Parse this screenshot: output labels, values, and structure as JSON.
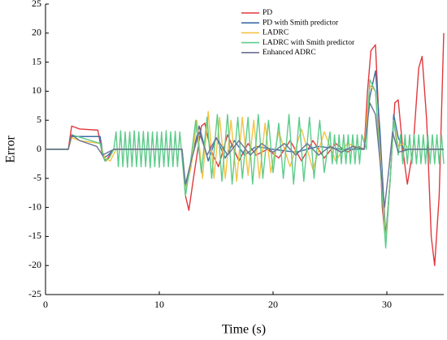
{
  "chart_data": {
    "type": "line",
    "x_label": "Time (s)",
    "y_label": "Error",
    "xlim": [
      0,
      35
    ],
    "xticks": [
      0,
      10,
      20,
      30
    ],
    "ylim": [
      -25,
      25
    ],
    "yticks": [
      -25,
      -20,
      -15,
      -10,
      -5,
      0,
      5,
      10,
      15,
      20,
      25
    ],
    "grid": false,
    "legend": "upper right",
    "series": [
      {
        "name": "PD",
        "color": "#e0393e",
        "x": [
          0,
          2,
          2.3,
          3,
          4.6,
          5,
          5.3,
          6,
          12,
          12.3,
          12.6,
          13,
          13.7,
          14,
          14.5,
          15.2,
          16,
          17,
          17.8,
          18.5,
          19.5,
          20.5,
          21.5,
          22.5,
          23.5,
          24.5,
          25.5,
          26.5,
          27.5,
          28,
          28.3,
          28.6,
          29,
          29.3,
          29.6,
          29.9,
          30.3,
          30.7,
          31,
          31.4,
          31.8,
          32.3,
          32.8,
          33.1,
          33.5,
          33.9,
          34.2,
          34.6,
          35
        ],
        "values": [
          0,
          0,
          4,
          3.5,
          3.3,
          -1,
          -2,
          0,
          0,
          -8,
          -10.5,
          -5,
          4,
          4.5,
          0,
          -3,
          2.5,
          -2,
          1,
          -1,
          0,
          -1.5,
          1.5,
          -2,
          1.5,
          -1.5,
          1,
          -0.5,
          0.5,
          0,
          10,
          17,
          18,
          5,
          -10,
          -16,
          -5,
          8,
          8.5,
          0,
          -6,
          0,
          14,
          16,
          5,
          -15,
          -20,
          -8,
          20
        ]
      },
      {
        "name": "PD with Smith predictor",
        "color": "#3d6ea6",
        "x": [
          0,
          2,
          2.3,
          4.8,
          5.1,
          5.5,
          6,
          12,
          12.3,
          12.8,
          13.5,
          14.3,
          15,
          15.8,
          16.6,
          17.5,
          18.5,
          20,
          22,
          24,
          26,
          28,
          28.5,
          29,
          29.4,
          29.9,
          30.3,
          30.6,
          31,
          31.5,
          35
        ],
        "values": [
          0,
          0,
          2.2,
          2.2,
          -1.5,
          -1,
          0,
          0,
          -7,
          -2,
          4,
          -2,
          2,
          -1.5,
          1.5,
          -1,
          0.5,
          0,
          -0.5,
          0.5,
          0,
          0,
          9,
          13.5,
          3,
          -15,
          -5,
          6,
          2,
          0,
          0
        ]
      },
      {
        "name": "LADRC",
        "color": "#f5c243",
        "x": [
          0,
          2,
          2.3,
          3,
          4.8,
          5.2,
          5.7,
          6.2,
          12,
          12.3,
          12.8,
          13.3,
          13.8,
          14.3,
          14.8,
          15.3,
          15.8,
          16.3,
          16.8,
          17.3,
          17.8,
          18.3,
          18.8,
          19.3,
          19.8,
          20.5,
          21.5,
          22.5,
          23.5,
          24.5,
          25.5,
          26.5,
          28,
          28.5,
          29,
          29.5,
          29.9,
          30.3,
          30.6,
          31,
          31.5,
          32,
          35
        ],
        "values": [
          0,
          0,
          2,
          1.5,
          1,
          -1.5,
          -2,
          0,
          0,
          -7,
          -3,
          5,
          -5,
          6.5,
          -5,
          5.5,
          -5,
          5,
          -5.5,
          5.5,
          -4.5,
          5,
          -5,
          4.5,
          -4,
          3,
          -3,
          3.5,
          -3.5,
          3,
          -2,
          1,
          0,
          11,
          10,
          -3,
          -16,
          -5,
          5,
          0.5,
          1,
          0,
          0
        ]
      },
      {
        "name": "LADRC with Smith predictor",
        "color": "#5ccc8a",
        "x": [
          0,
          2,
          2.3,
          4.8,
          5.2,
          5.6,
          6,
          6.2,
          6.4,
          6.6,
          6.8,
          7,
          7.2,
          7.4,
          7.6,
          7.8,
          8,
          8.2,
          8.4,
          8.6,
          8.8,
          9,
          9.2,
          9.4,
          9.6,
          9.8,
          10,
          10.2,
          10.4,
          10.6,
          10.8,
          11,
          11.2,
          11.4,
          11.6,
          11.8,
          12.3,
          12.7,
          13.2,
          13.7,
          14.2,
          14.6,
          15.1,
          15.5,
          16,
          16.4,
          16.9,
          17.3,
          17.8,
          18.2,
          18.7,
          19.1,
          19.6,
          20,
          20.5,
          20.9,
          21.4,
          21.8,
          22.3,
          22.7,
          23.2,
          23.6,
          24.1,
          24.5,
          25,
          25.2,
          25.4,
          25.6,
          25.8,
          26,
          26.2,
          26.4,
          26.6,
          26.8,
          27,
          27.2,
          27.4,
          27.6,
          27.8,
          28.2,
          28.5,
          29,
          29.5,
          29.9,
          30.3,
          30.6,
          31,
          31.2,
          31.4,
          31.6,
          31.8,
          32,
          32.2,
          32.4,
          32.6,
          32.8,
          33,
          33.2,
          33.4,
          33.6,
          33.8,
          34,
          34.2,
          34.4,
          34.6,
          34.8,
          35
        ],
        "values": [
          0,
          0,
          2.5,
          1,
          -2,
          -1.5,
          0,
          3,
          -3,
          3.2,
          -3,
          3,
          -3.1,
          3,
          -3,
          3.2,
          -3,
          3,
          -3,
          3.1,
          -3,
          3,
          -3.2,
          3,
          -3,
          3,
          -3.1,
          3,
          -3,
          3.2,
          -3,
          3,
          -3,
          3.1,
          -3,
          3,
          -8,
          -3,
          5,
          -4,
          5.5,
          -5,
          6,
          -5.5,
          6,
          -6,
          5.5,
          -5,
          5.5,
          -6,
          6,
          -5,
          5,
          -4,
          4.5,
          -5,
          6,
          -6,
          5.5,
          -5.5,
          5.5,
          -5,
          5,
          -4,
          3,
          -2.5,
          2.5,
          -2.5,
          2.5,
          -2.5,
          2.5,
          -2.5,
          2.5,
          -2.5,
          2.5,
          -2.5,
          2.5,
          -2.5,
          2.5,
          0,
          12,
          10,
          -5,
          -17,
          -5,
          5,
          -1,
          2.5,
          -2.5,
          2.5,
          -2.5,
          2.5,
          -2.5,
          2.5,
          -2.5,
          2.5,
          -2.5,
          2.5,
          -2.5,
          2.5,
          -2.5,
          2.5,
          -2.5,
          2.5,
          -2.5,
          2.5,
          -2.5
        ]
      },
      {
        "name": "Enhanced ADRC",
        "color": "#6a7396",
        "x": [
          0,
          2,
          2.3,
          3,
          4.5,
          5,
          5.5,
          6,
          12,
          12.3,
          12.8,
          13.5,
          14.2,
          15,
          16,
          17,
          18,
          19,
          20,
          21,
          22,
          23,
          24,
          25,
          26,
          27,
          28,
          28.5,
          29,
          29.4,
          29.8,
          30.2,
          30.5,
          31,
          32,
          35
        ],
        "values": [
          0,
          0,
          2.5,
          1.5,
          0.5,
          -1,
          -0.5,
          0,
          0,
          -6,
          -2,
          3,
          -1,
          2,
          -1,
          1.5,
          -1,
          1,
          -0.5,
          1,
          -1,
          1,
          -1,
          0.5,
          -0.5,
          0.5,
          0,
          8,
          6,
          -2,
          -10,
          -3,
          3,
          -0.5,
          0,
          0
        ]
      }
    ]
  }
}
